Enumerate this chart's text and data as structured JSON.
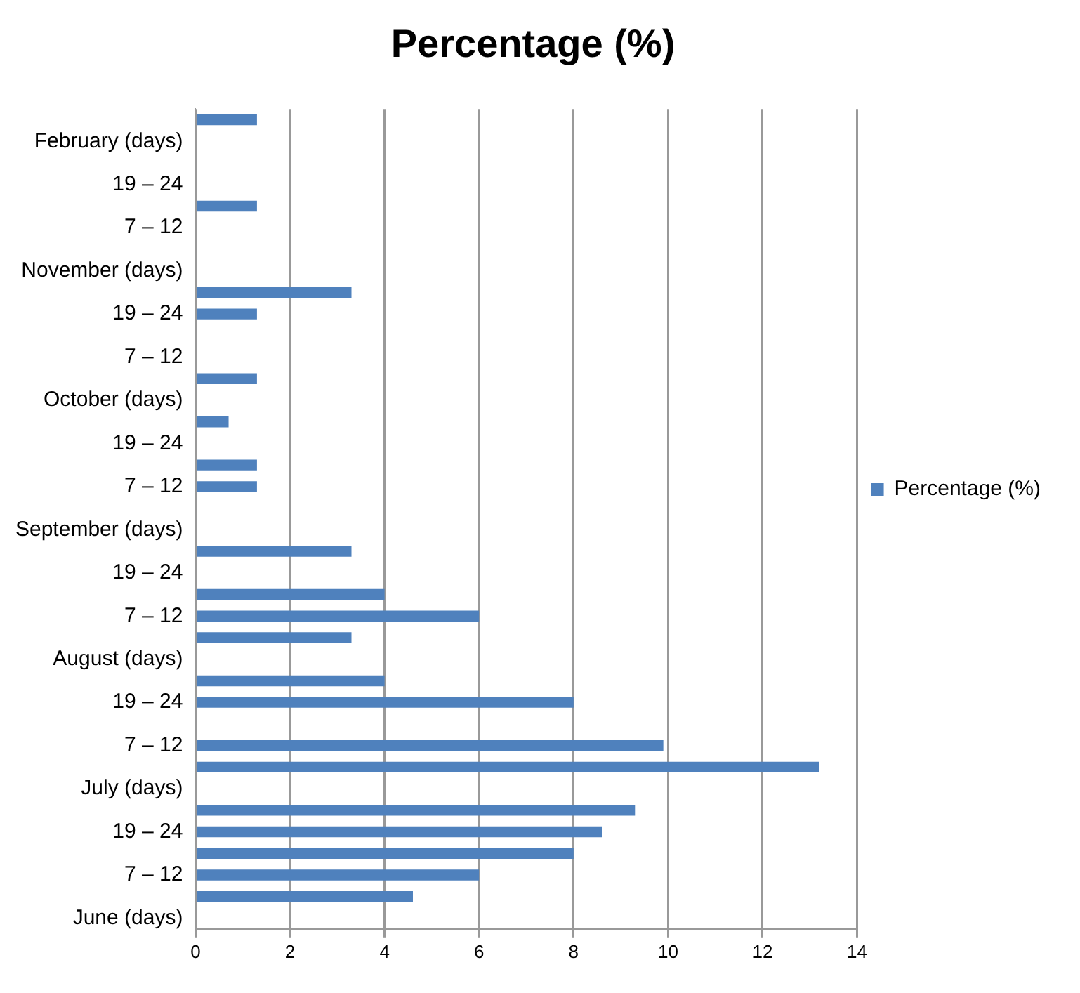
{
  "chart_data": {
    "type": "bar",
    "orientation": "horizontal",
    "title": "Percentage (%)",
    "categories": [
      null,
      "February (days)",
      null,
      "19 – 24",
      null,
      "7 – 12",
      null,
      "November (days)",
      null,
      "19 – 24",
      null,
      "7 – 12",
      null,
      "October (days)",
      null,
      "19 – 24",
      null,
      "7 – 12",
      null,
      "September (days)",
      null,
      "19 – 24",
      null,
      "7 – 12",
      null,
      "August (days)",
      null,
      "19 – 24",
      null,
      "7 – 12",
      null,
      "July (days)",
      null,
      "19 – 24",
      null,
      "7 – 12",
      null,
      "June (days)"
    ],
    "series": [
      {
        "name": "Percentage (%)",
        "color": "#4f81bd",
        "values": [
          1.3,
          0,
          0,
          0,
          1.3,
          0,
          0,
          0,
          3.3,
          1.3,
          0,
          0,
          1.3,
          0,
          0.7,
          0,
          1.3,
          1.3,
          0,
          0,
          3.3,
          0,
          4,
          6,
          3.3,
          0,
          4,
          8,
          0,
          9.9,
          13.2,
          0,
          9.3,
          8.6,
          8,
          6,
          4.6,
          0
        ]
      }
    ],
    "xlim": [
      0,
      14
    ],
    "xticks": [
      0,
      2,
      4,
      6,
      8,
      10,
      12,
      14
    ],
    "grid": "x",
    "legend": "right"
  }
}
